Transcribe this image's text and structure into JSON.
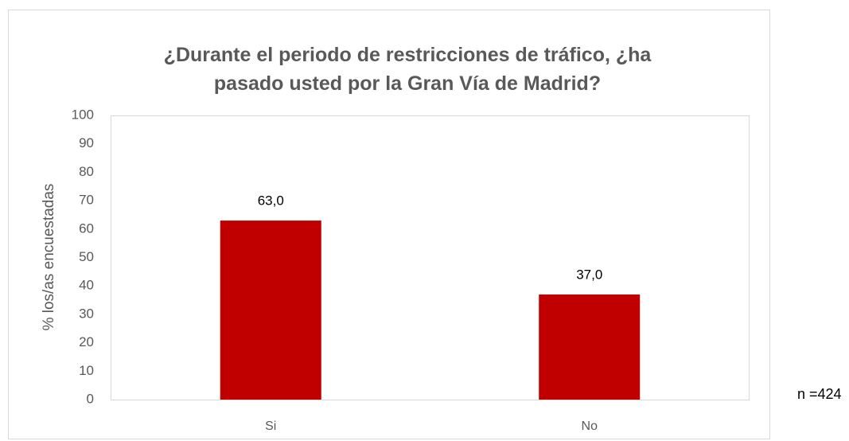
{
  "chart_data": {
    "type": "bar",
    "title": [
      "¿Durante el periodo de restricciones de tráfico, ¿ha",
      "pasado usted por la Gran Vía de Madrid?"
    ],
    "y_label": "% los/as encuestadas",
    "annotation": "n =424",
    "categories": [
      "Si",
      "No"
    ],
    "values": [
      63.0,
      37.0
    ],
    "value_labels": [
      "63,0",
      "37,0"
    ],
    "color": "#c00000",
    "ylim": [
      0,
      100
    ],
    "yticks": [
      0,
      10,
      20,
      30,
      40,
      50,
      60,
      70,
      80,
      90,
      100
    ],
    "grid": false
  }
}
